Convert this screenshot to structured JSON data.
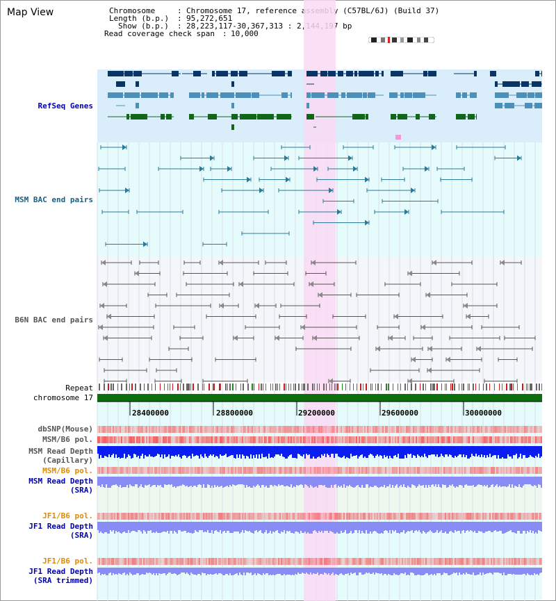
{
  "title": "Map View",
  "info": {
    "chromosome_key": "Chromosome",
    "chromosome_val": "Chromosome 17, reference assembly (C57BL/6J) (Build 37)",
    "length_key": "Length (b.p.)",
    "length_val": "95,272,651",
    "show_key": "Show (b.p.)",
    "show_val": "28,223,117-30,367,313 : 2,144,197 bp",
    "coverage_key": "Read coverage check span",
    "coverage_val": "10,000"
  },
  "tracks": {
    "refseq": "RefSeq Genes",
    "msm_bac": "MSM BAC end pairs",
    "b6n_bac": "B6N BAC end pairs",
    "repeat": "Repeat",
    "chromosome": "chromosome 17",
    "dbsnp": "dbSNP(Mouse)",
    "msm_b6_pol_1": "MSM/B6 pol.",
    "msm_depth_cap_1": "MSM Read Depth",
    "msm_depth_cap_2": "(Capillary)",
    "msm_b6_pol_2": "MSM/B6 pol.",
    "msm_depth_sra_1": "MSM Read Depth",
    "msm_depth_sra_2": "(SRA)",
    "jf1_b6_pol_1": "JF1/B6 pol.",
    "jf1_depth_sra_1": "JF1 Read Depth",
    "jf1_depth_sra_2": "(SRA)",
    "jf1_b6_pol_2": "JF1/B6 pol.",
    "jf1_depth_trim_1": "JF1 Read Depth",
    "jf1_depth_trim_2": "(SRA trimmed)"
  },
  "ruler": {
    "ticks": [
      "28400000",
      "28800000",
      "29200000",
      "29600000",
      "30000000"
    ]
  },
  "colors": {
    "highlight": "#f9d9f3",
    "refseq_bg": "#d9eefa",
    "gene_dark": "#0a3366",
    "gene_mid": "#4a90b8",
    "gene_green": "#11661a",
    "msm_bac": "#2a7a99",
    "b6n_bac": "#555555",
    "chromosome": "#0d6e0d",
    "blue_depth": "#0a1ef0",
    "purple_depth": "#8a8cf5",
    "pol_red": "#f36060"
  }
}
